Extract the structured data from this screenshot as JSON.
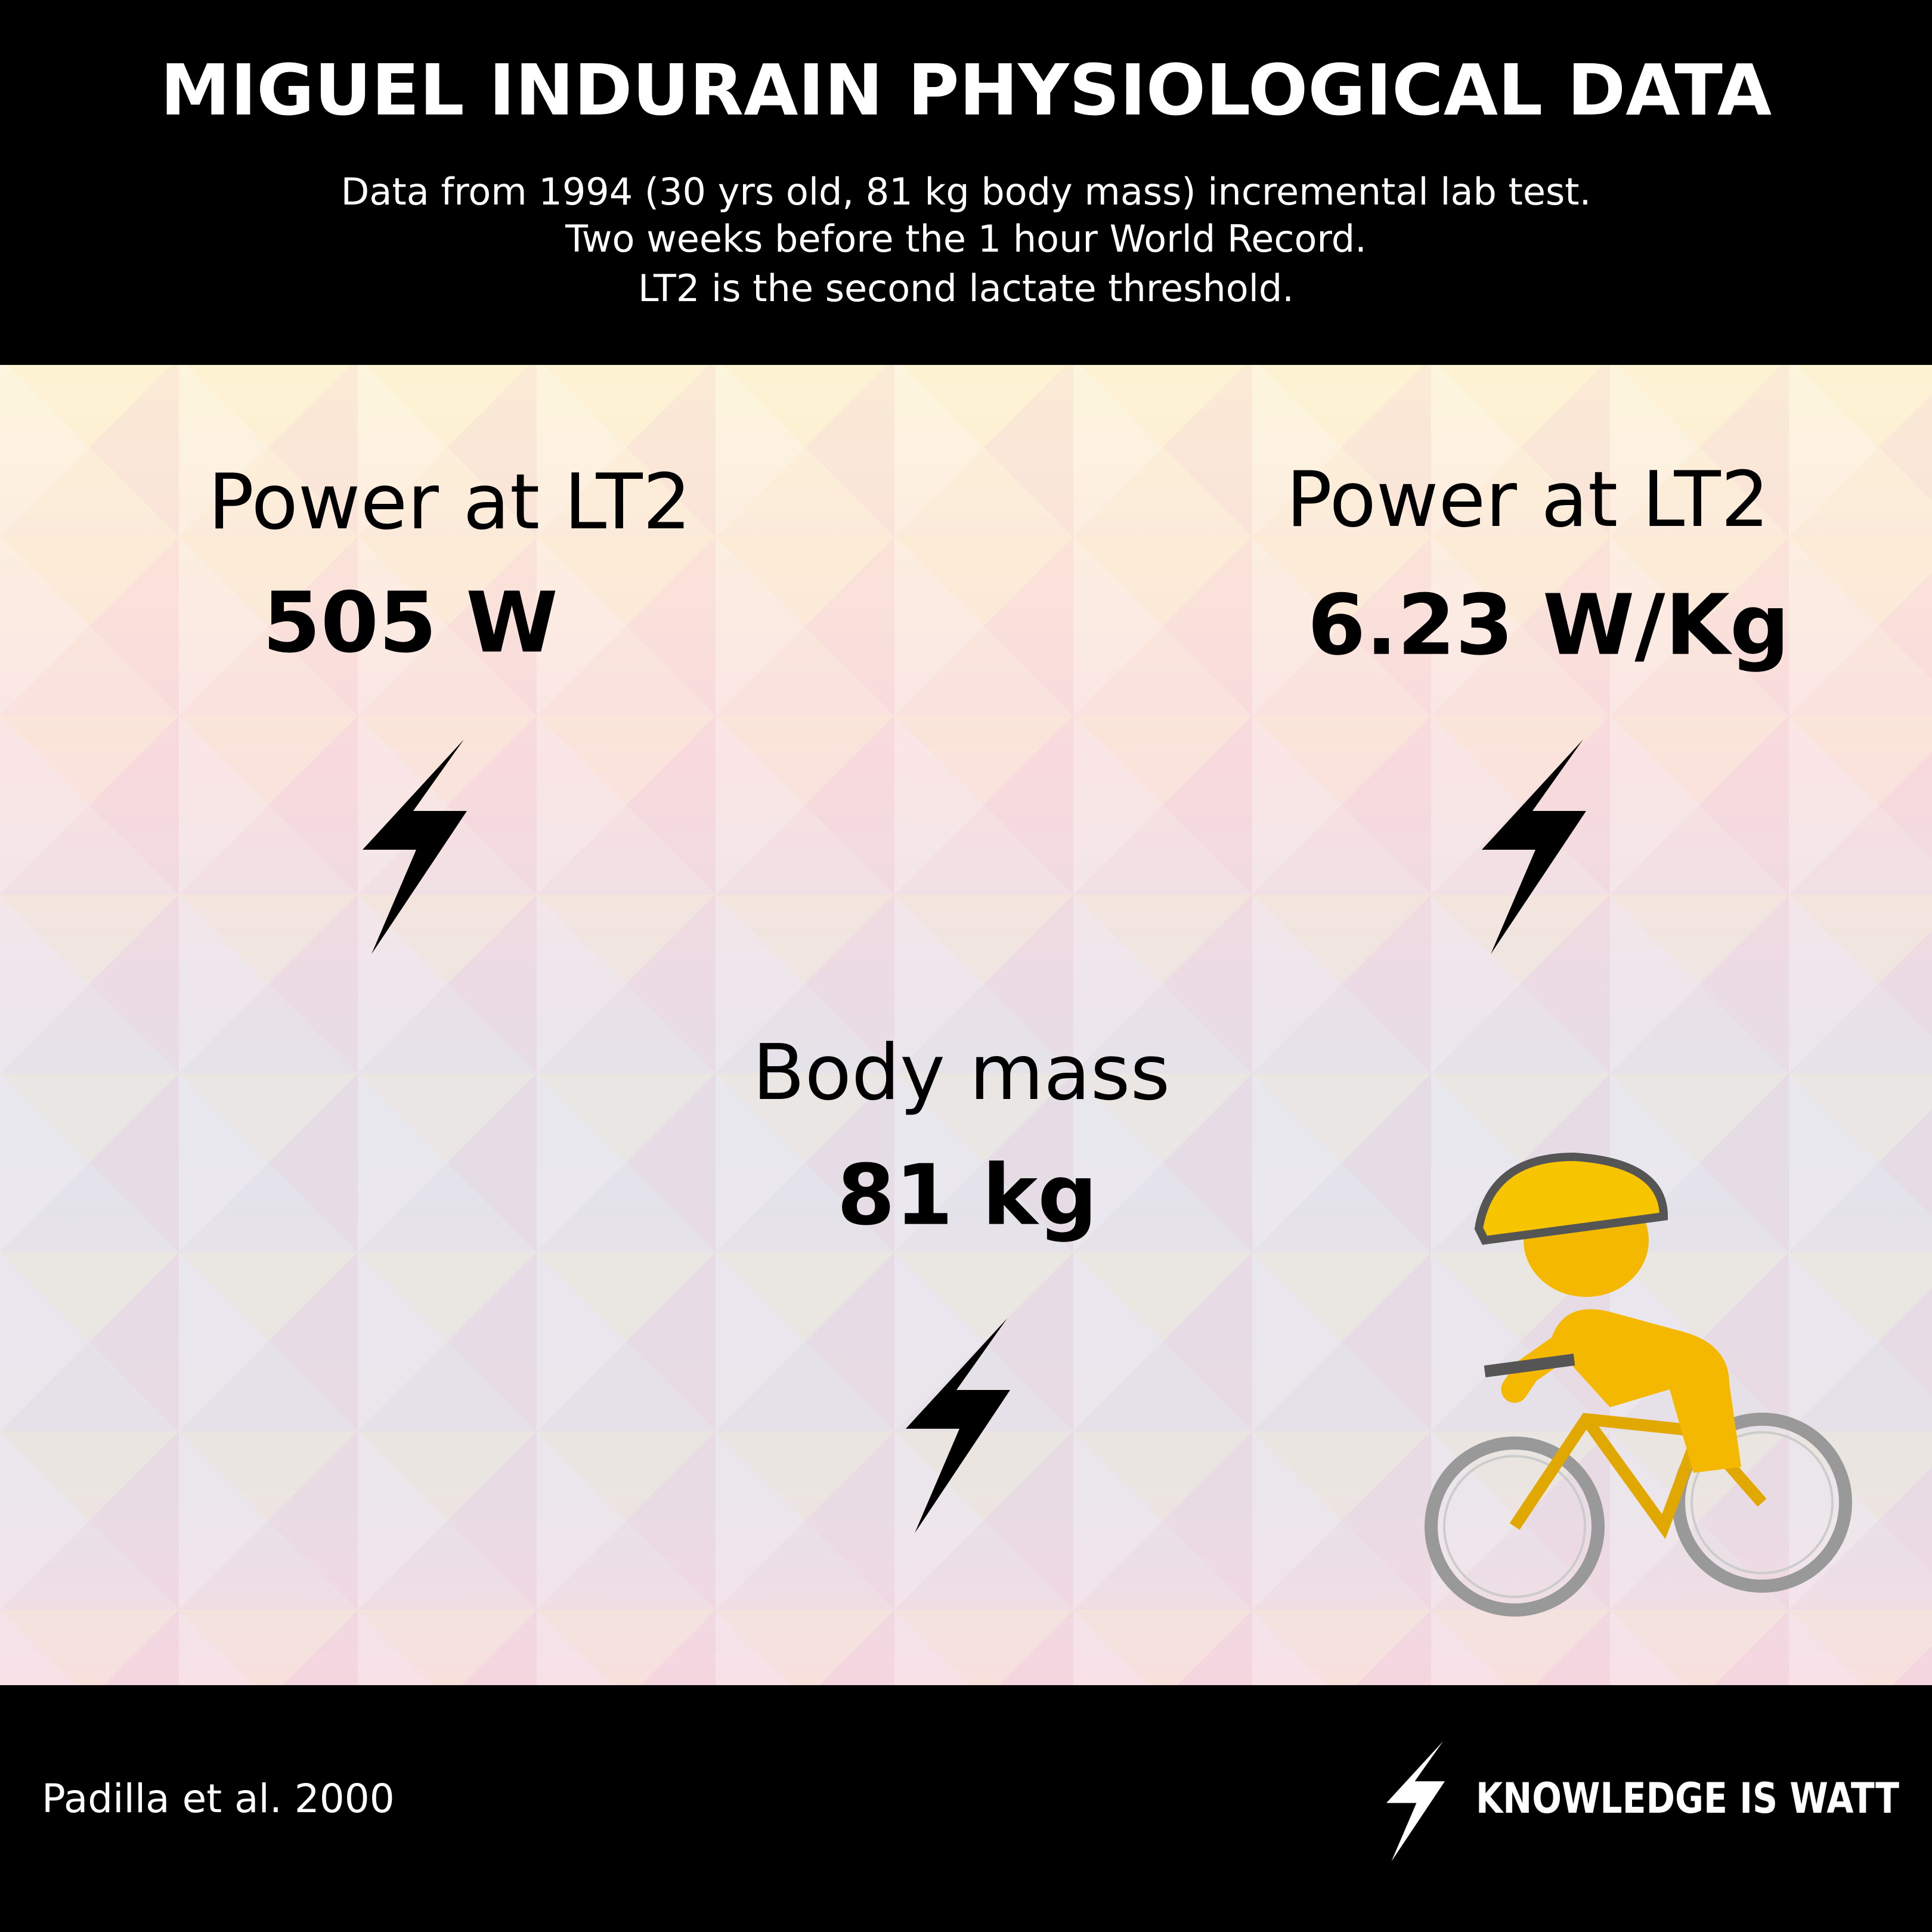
{
  "header": {
    "title": "MIGUEL INDURAIN PHYSIOLOGICAL DATA",
    "subtitle": [
      "Data from 1994 (30 yrs old, 81 kg body mass) incremental lab test.",
      "Two weeks before the 1 hour World Record.",
      "LT2 is the second lactate threshold."
    ]
  },
  "stats": [
    {
      "label": "Power at LT2",
      "value": "505 W"
    },
    {
      "label": "Power at LT2",
      "value": "6.23 W/Kg"
    },
    {
      "label": "Body mass",
      "value": "81 kg"
    }
  ],
  "footer": {
    "source": "Padilla et al. 2000",
    "brand": "KNOWLEDGE IS WATT"
  }
}
